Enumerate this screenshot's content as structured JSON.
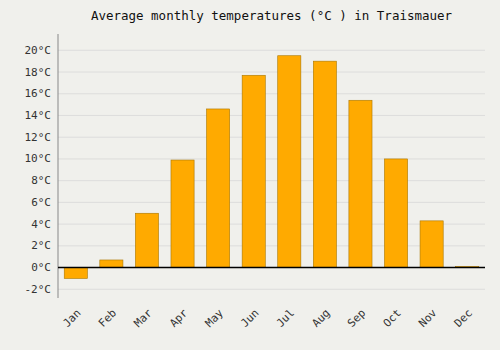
{
  "chart_data": {
    "type": "bar",
    "title": "Average monthly temperatures (°C ) in Traismauer",
    "categories": [
      "Jan",
      "Feb",
      "Mar",
      "Apr",
      "May",
      "Jun",
      "Jul",
      "Aug",
      "Sep",
      "Oct",
      "Nov",
      "Dec"
    ],
    "values": [
      -1.0,
      0.7,
      5.0,
      9.9,
      14.6,
      17.7,
      19.5,
      19.0,
      15.4,
      10.0,
      4.3,
      0.1
    ],
    "color": "#FFAA00",
    "ylim": [
      -2.8,
      21.5
    ],
    "yticks": [
      {
        "value": -2,
        "label": "-2°C"
      },
      {
        "value": 0,
        "label": "0°C"
      },
      {
        "value": 2,
        "label": "2°C"
      },
      {
        "value": 4,
        "label": "4°C"
      },
      {
        "value": 6,
        "label": "6°C"
      },
      {
        "value": 8,
        "label": "8°C"
      },
      {
        "value": 10,
        "label": "10°C"
      },
      {
        "value": 12,
        "label": "12°C"
      },
      {
        "value": 14,
        "label": "14°C"
      },
      {
        "value": 16,
        "label": "16°C"
      },
      {
        "value": 18,
        "label": "18°C"
      },
      {
        "value": 20,
        "label": "20°C"
      }
    ],
    "grid": true
  }
}
